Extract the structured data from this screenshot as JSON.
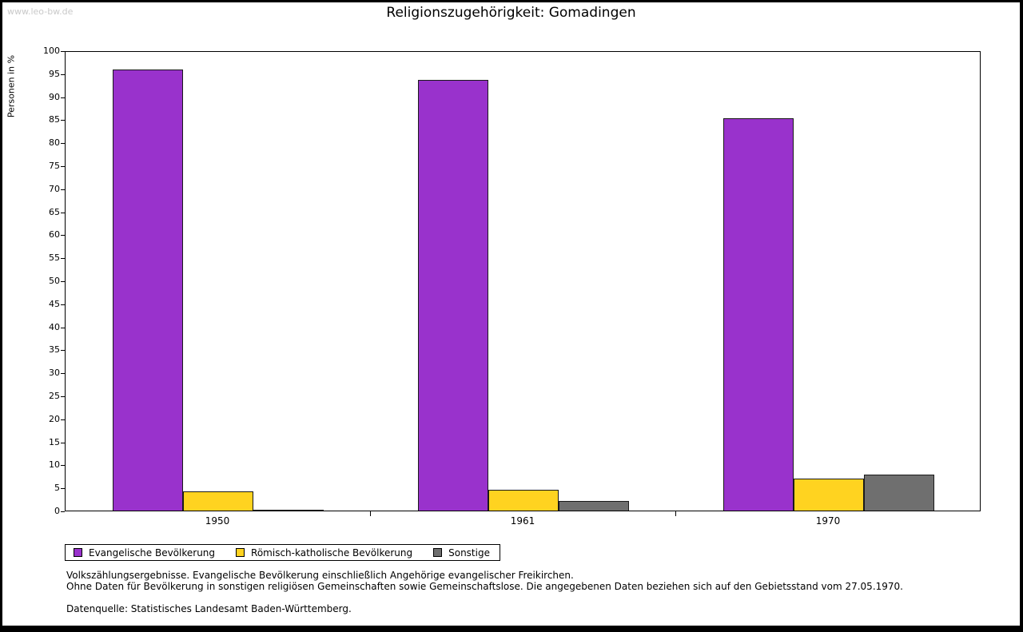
{
  "watermark": "www.leo-bw.de",
  "title": "Religionszugehörigkeit: Gomadingen",
  "chart_data": {
    "type": "bar",
    "title": "Religionszugehörigkeit: Gomadingen",
    "xlabel": "",
    "ylabel": "Personen in %",
    "ylim": [
      0,
      100
    ],
    "ytick_step": 5,
    "grid": false,
    "legend_position": "bottom-left",
    "categories": [
      "1950",
      "1961",
      "1970"
    ],
    "series": [
      {
        "name": "Evangelische Bevölkerung",
        "color": "#9932cc",
        "values": [
          95.9,
          93.6,
          85.2
        ]
      },
      {
        "name": "Römisch-katholische Bevölkerung",
        "color": "#ffd320",
        "values": [
          4.2,
          4.5,
          7.0
        ]
      },
      {
        "name": "Sonstige",
        "color": "#6f6f6f",
        "values": [
          0.1,
          2.1,
          7.8
        ]
      }
    ]
  },
  "footer": {
    "line1": "Volkszählungsergebnisse. Evangelische Bevölkerung einschließlich Angehörige evangelischer Freikirchen.",
    "line2": "Ohne Daten für Bevölkerung in sonstigen religiösen Gemeinschaften sowie Gemeinschaftslose. Die angegebenen Daten beziehen sich auf den Gebietsstand vom 27.05.1970.",
    "source": "Datenquelle: Statistisches Landesamt Baden-Württemberg."
  }
}
